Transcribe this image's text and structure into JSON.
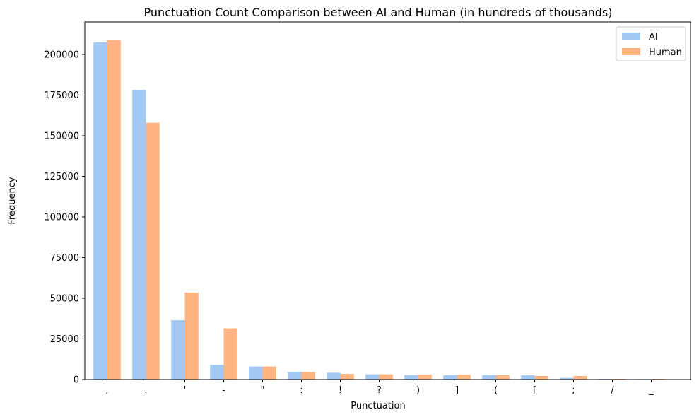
{
  "chart_data": {
    "type": "bar",
    "title": "Punctuation Count Comparison between AI and Human (in hundreds of thousands)",
    "xlabel": "Punctuation",
    "ylabel": "Frequency",
    "categories": [
      ",",
      ".",
      "'",
      "-",
      "\"",
      ":",
      "!",
      "?",
      ")",
      "]",
      "(",
      "[",
      ";",
      "/",
      "_"
    ],
    "series": [
      {
        "name": "AI",
        "color": "#a1c9f4",
        "values": [
          207500,
          178000,
          36500,
          9000,
          8000,
          4800,
          4200,
          3200,
          2700,
          2700,
          2700,
          2600,
          1000,
          400,
          300
        ]
      },
      {
        "name": "Human",
        "color": "#ffb482",
        "values": [
          209000,
          158000,
          53500,
          31500,
          8000,
          4600,
          3500,
          3200,
          3000,
          3000,
          2600,
          2200,
          2200,
          400,
          400
        ]
      }
    ],
    "ylim": [
      0,
      220000
    ],
    "yticks": [
      0,
      25000,
      50000,
      75000,
      100000,
      125000,
      150000,
      175000,
      200000
    ],
    "ytick_labels": [
      "0",
      "25000",
      "50000",
      "75000",
      "100000",
      "125000",
      "150000",
      "175000",
      "200000"
    ],
    "legend_position": "top-right",
    "grid": false
  }
}
